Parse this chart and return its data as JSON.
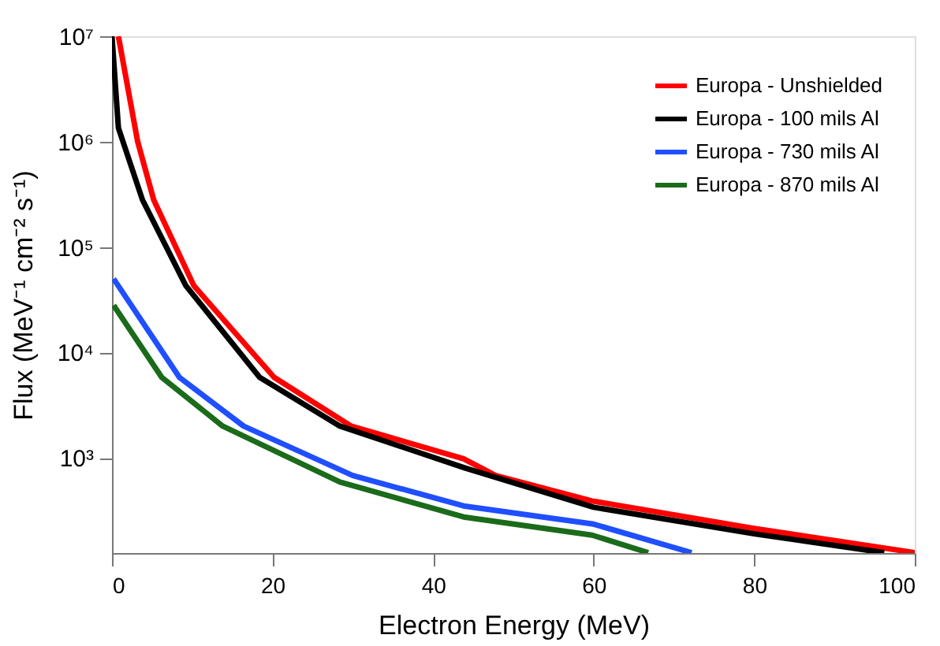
{
  "chart_data": {
    "type": "line",
    "xlabel": "Electron Energy (MeV)",
    "ylabel": "Flux (MeV⁻¹ cm⁻² s⁻¹)",
    "log": "y",
    "grid": false,
    "legend": "top right",
    "line_style": "solid",
    "marker": "none",
    "xlim": [
      0,
      100
    ],
    "xticks": [
      0,
      20,
      40,
      60,
      80,
      100
    ],
    "ylim": [
      125,
      10000000
    ],
    "yticks": [
      {
        "value": 1000,
        "label": "10³"
      },
      {
        "value": 10000,
        "label": "10⁴"
      },
      {
        "value": 100000,
        "label": "10⁵"
      },
      {
        "value": 1000000,
        "label": "10⁶"
      },
      {
        "value": 10000000,
        "label": "10⁷"
      }
    ],
    "series": [
      {
        "name": "Europa - Unshielded",
        "color": "#ff0000",
        "x": [
          0.8,
          3.2,
          5.2,
          10.2,
          20.2,
          29.8,
          43.8,
          47.8,
          59.8,
          79.8,
          100
        ],
        "values": [
          10000000,
          1000000,
          280000,
          43000,
          5800,
          2000,
          980,
          680,
          390,
          215,
          126
        ]
      },
      {
        "name": "Europa - 100 mils Al",
        "color": "#000000",
        "x": [
          0,
          0.8,
          3.8,
          9.2,
          18.4,
          28.4,
          44,
          60,
          80,
          96.2
        ],
        "values": [
          10000000,
          1350000,
          280000,
          43000,
          5800,
          2000,
          800,
          340,
          190,
          126
        ]
      },
      {
        "name": "Europa - 730 mils Al",
        "color": "#1f4fff",
        "x": [
          0.2,
          8.4,
          16.4,
          30,
          43.8,
          60,
          72.2
        ],
        "values": [
          50000,
          5800,
          2000,
          680,
          350,
          235,
          126
        ]
      },
      {
        "name": "Europa - 870 mils Al",
        "color": "#1a6b1a",
        "x": [
          0.2,
          6.2,
          13.8,
          28.4,
          43.8,
          59.8,
          66.8
        ],
        "values": [
          28000,
          5800,
          2000,
          590,
          275,
          185,
          126
        ]
      }
    ]
  }
}
